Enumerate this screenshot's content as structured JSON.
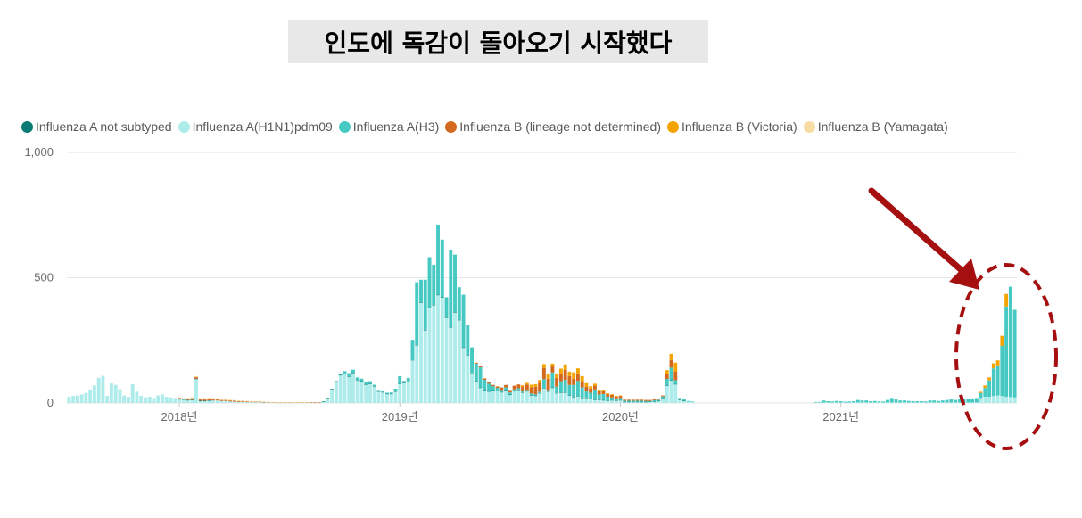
{
  "title": "인도에 독감이 돌아오기 시작했다",
  "colors": {
    "a_not_subtyped": "#0b7b75",
    "h1n1": "#aeeceb",
    "h3": "#45c9c2",
    "b_not_determined": "#d2691e",
    "b_victoria": "#f5a300",
    "b_yamagata": "#f7dca4",
    "annotation": "#a50f0f",
    "gridline": "#e6e6e6"
  },
  "chart_data": {
    "type": "bar",
    "stacked": true,
    "x_unit": "week",
    "start_week": "2017-07",
    "ylim": [
      0,
      1000
    ],
    "y_ticks": [
      "0",
      "500",
      "1,000"
    ],
    "x_ticks": [
      {
        "label": "2018년",
        "week_index": 26
      },
      {
        "label": "2019년",
        "week_index": 78
      },
      {
        "label": "2020년",
        "week_index": 130
      },
      {
        "label": "2021년",
        "week_index": 182
      }
    ],
    "legend_position": "top-left",
    "grid": true,
    "series": [
      {
        "name": "Influenza A not subtyped",
        "color_key": "a_not_subtyped",
        "values": [
          0,
          0,
          0,
          0,
          0,
          0,
          0,
          0,
          0,
          0,
          0,
          0,
          0,
          0,
          0,
          0,
          0,
          0,
          0,
          0,
          0,
          0,
          0,
          0,
          0,
          0,
          1,
          1,
          2,
          2,
          2,
          1,
          1,
          1,
          0,
          0,
          0,
          0,
          0,
          0,
          0,
          0,
          0,
          0,
          0,
          0,
          0,
          0,
          0,
          0,
          0,
          0,
          0,
          0,
          0,
          0,
          0,
          0,
          0,
          0,
          2,
          2,
          2,
          2,
          2,
          2,
          2,
          2,
          2,
          2,
          2,
          2,
          2,
          2,
          2,
          2,
          2,
          2,
          2,
          2,
          2,
          2,
          2,
          2,
          2,
          2,
          2,
          2,
          2,
          2,
          2,
          2,
          2,
          2,
          2,
          2,
          2,
          2,
          2,
          2,
          2,
          2,
          2,
          2,
          2,
          2,
          2,
          2,
          2,
          2,
          2,
          2,
          2,
          2,
          2,
          2,
          2,
          2,
          2,
          2,
          2,
          2,
          2,
          2,
          2,
          2,
          2,
          2,
          2,
          2,
          2,
          1,
          1,
          1,
          1,
          1,
          1,
          1,
          1,
          1,
          1,
          1,
          1,
          1,
          1,
          1,
          0,
          0,
          0,
          0,
          0,
          0,
          0,
          0,
          0,
          0,
          0,
          0,
          0,
          0,
          0,
          0,
          0,
          0,
          0,
          0,
          0,
          0,
          0,
          0,
          0,
          0,
          0,
          0,
          0,
          0,
          0,
          0,
          0,
          0,
          0,
          0,
          0,
          0,
          0,
          0,
          0,
          0,
          0,
          0,
          0,
          0,
          0,
          0,
          0,
          0,
          0,
          0,
          0,
          0,
          0,
          0,
          0,
          0,
          0,
          0,
          0,
          0,
          0,
          0,
          0,
          0,
          0,
          0,
          0,
          0,
          0,
          0,
          0,
          0,
          0,
          0,
          0,
          0
        ]
      },
      {
        "name": "Influenza A(H1N1)pdm09",
        "color_key": "h1n1",
        "values": [
          24,
          28,
          30,
          34,
          40,
          54,
          70,
          100,
          108,
          28,
          78,
          72,
          55,
          30,
          25,
          75,
          45,
          28,
          22,
          25,
          20,
          30,
          35,
          25,
          22,
          20,
          15,
          14,
          10,
          11,
          95,
          8,
          8,
          10,
          10,
          10,
          8,
          8,
          6,
          5,
          4,
          4,
          3,
          3,
          3,
          3,
          2,
          2,
          2,
          1,
          1,
          1,
          1,
          1,
          1,
          1,
          1,
          2,
          2,
          2,
          5,
          18,
          55,
          85,
          110,
          115,
          105,
          118,
          90,
          85,
          72,
          75,
          65,
          45,
          42,
          35,
          35,
          45,
          75,
          80,
          88,
          170,
          230,
          400,
          290,
          380,
          390,
          430,
          420,
          340,
          300,
          360,
          330,
          220,
          190,
          120,
          85,
          60,
          50,
          45,
          50,
          48,
          42,
          50,
          32,
          46,
          52,
          40,
          46,
          30,
          28,
          38,
          58,
          45,
          60,
          38,
          40,
          40,
          30,
          22,
          26,
          20,
          20,
          15,
          12,
          12,
          10,
          8,
          10,
          8,
          10,
          4,
          4,
          4,
          4,
          4,
          4,
          5,
          6,
          8,
          20,
          70,
          90,
          75,
          12,
          8,
          5,
          4,
          0,
          0,
          0,
          0,
          0,
          0,
          0,
          0,
          0,
          0,
          0,
          0,
          0,
          0,
          0,
          0,
          0,
          0,
          0,
          0,
          0,
          0,
          0,
          0,
          0,
          0,
          0,
          0,
          2,
          2,
          2,
          2,
          2,
          2,
          2,
          2,
          2,
          2,
          2,
          2,
          2,
          2,
          2,
          2,
          2,
          2,
          2,
          2,
          2,
          2,
          2,
          2,
          2,
          2,
          2,
          2,
          2,
          2,
          2,
          2,
          2,
          2,
          2,
          2,
          2,
          2,
          2,
          20,
          25,
          25,
          28,
          30,
          28,
          25,
          24,
          22,
          20
        ]
      },
      {
        "name": "Influenza A(H3)",
        "color_key": "h3",
        "values": [
          0,
          0,
          0,
          0,
          0,
          0,
          0,
          0,
          0,
          0,
          0,
          0,
          0,
          0,
          0,
          0,
          0,
          0,
          0,
          0,
          0,
          0,
          0,
          0,
          0,
          0,
          0,
          0,
          0,
          0,
          0,
          0,
          0,
          0,
          0,
          0,
          0,
          0,
          0,
          0,
          0,
          0,
          0,
          0,
          0,
          0,
          0,
          0,
          0,
          0,
          0,
          0,
          0,
          0,
          0,
          0,
          0,
          0,
          0,
          0,
          0,
          0,
          0,
          0,
          4,
          10,
          12,
          13,
          10,
          10,
          10,
          10,
          6,
          5,
          5,
          4,
          5,
          10,
          30,
          6,
          10,
          80,
          250,
          90,
          200,
          200,
          160,
          280,
          230,
          80,
          310,
          230,
          130,
          210,
          120,
          100,
          70,
          80,
          40,
          30,
          15,
          10,
          8,
          10,
          8,
          6,
          5,
          4,
          4,
          6,
          5,
          5,
          35,
          5,
          60,
          25,
          45,
          50,
          40,
          48,
          60,
          40,
          24,
          24,
          40,
          20,
          24,
          15,
          10,
          8,
          8,
          4,
          4,
          4,
          4,
          4,
          3,
          2,
          4,
          4,
          5,
          25,
          50,
          15,
          7,
          8,
          3,
          2,
          0,
          0,
          0,
          0,
          0,
          0,
          0,
          0,
          0,
          0,
          0,
          0,
          0,
          0,
          0,
          0,
          0,
          0,
          0,
          0,
          0,
          0,
          0,
          0,
          0,
          0,
          0,
          0,
          2,
          2,
          8,
          5,
          4,
          6,
          5,
          3,
          4,
          5,
          10,
          8,
          8,
          5,
          6,
          4,
          4,
          10,
          18,
          12,
          8,
          8,
          6,
          5,
          5,
          5,
          4,
          8,
          8,
          6,
          8,
          10,
          12,
          10,
          12,
          12,
          14,
          16,
          18,
          20,
          35,
          65,
          110,
          120,
          200,
          360,
          440,
          350,
          340,
          300
        ]
      },
      {
        "name": "Influenza B (lineage not determined)",
        "color_key": "b_not_determined",
        "values": [
          0,
          0,
          0,
          0,
          0,
          0,
          0,
          0,
          0,
          0,
          0,
          0,
          0,
          0,
          0,
          0,
          0,
          0,
          0,
          0,
          0,
          0,
          0,
          0,
          0,
          0,
          4,
          3,
          5,
          6,
          6,
          5,
          5,
          4,
          4,
          4,
          4,
          4,
          4,
          4,
          3,
          3,
          3,
          2,
          2,
          2,
          2,
          2,
          1,
          1,
          1,
          1,
          1,
          1,
          1,
          1,
          1,
          1,
          1,
          1,
          0,
          0,
          0,
          0,
          0,
          0,
          0,
          0,
          0,
          0,
          0,
          0,
          0,
          0,
          0,
          0,
          0,
          0,
          0,
          0,
          0,
          0,
          0,
          0,
          0,
          0,
          0,
          0,
          0,
          0,
          0,
          0,
          0,
          0,
          0,
          0,
          4,
          6,
          6,
          5,
          5,
          6,
          10,
          10,
          10,
          15,
          15,
          20,
          22,
          25,
          30,
          35,
          45,
          45,
          25,
          35,
          30,
          40,
          35,
          25,
          30,
          25,
          18,
          16,
          15,
          14,
          12,
          10,
          10,
          8,
          8,
          4,
          4,
          4,
          4,
          4,
          4,
          4,
          4,
          4,
          4,
          20,
          30,
          35,
          0,
          0,
          0,
          0,
          0,
          0,
          0,
          0,
          0,
          0,
          0,
          0,
          0,
          0,
          0,
          0,
          0,
          0,
          0,
          0,
          0,
          0,
          0,
          0,
          0,
          0,
          0,
          0,
          0,
          0,
          0,
          0,
          0,
          0,
          0,
          0,
          0,
          0,
          0,
          0,
          0,
          0,
          0,
          0,
          0,
          0,
          0,
          0,
          0,
          0,
          0,
          0,
          0,
          0,
          0,
          0,
          0,
          0,
          0,
          0,
          0,
          0,
          0,
          0,
          0,
          0,
          0,
          0,
          0,
          0,
          0,
          0,
          0,
          0,
          0,
          0,
          0,
          0,
          0,
          0,
          0,
          0,
          0,
          0,
          0,
          0
        ]
      },
      {
        "name": "Influenza B (Victoria)",
        "color_key": "b_victoria",
        "values": [
          0,
          0,
          0,
          0,
          0,
          0,
          0,
          0,
          0,
          0,
          0,
          0,
          0,
          0,
          0,
          0,
          0,
          0,
          0,
          0,
          0,
          0,
          0,
          0,
          0,
          0,
          0,
          0,
          0,
          0,
          0,
          0,
          0,
          0,
          0,
          0,
          0,
          0,
          0,
          0,
          0,
          0,
          0,
          0,
          0,
          0,
          0,
          0,
          0,
          0,
          0,
          0,
          0,
          0,
          0,
          0,
          0,
          0,
          0,
          0,
          0,
          0,
          0,
          0,
          0,
          0,
          0,
          0,
          0,
          0,
          0,
          0,
          0,
          0,
          0,
          0,
          0,
          0,
          0,
          0,
          0,
          0,
          0,
          0,
          0,
          0,
          0,
          0,
          0,
          0,
          0,
          0,
          0,
          0,
          0,
          0,
          0,
          0,
          0,
          0,
          0,
          0,
          0,
          0,
          0,
          0,
          0,
          5,
          6,
          10,
          10,
          12,
          15,
          20,
          10,
          15,
          20,
          22,
          18,
          25,
          20,
          20,
          15,
          10,
          8,
          5,
          5,
          4,
          3,
          2,
          2,
          0,
          0,
          0,
          0,
          0,
          0,
          0,
          0,
          0,
          0,
          15,
          25,
          35,
          0,
          0,
          0,
          0,
          0,
          0,
          0,
          0,
          0,
          0,
          0,
          0,
          0,
          0,
          0,
          0,
          0,
          0,
          0,
          0,
          0,
          0,
          0,
          0,
          0,
          0,
          0,
          0,
          0,
          0,
          0,
          0,
          0,
          0,
          0,
          0,
          0,
          0,
          0,
          0,
          0,
          0,
          0,
          0,
          0,
          0,
          0,
          0,
          0,
          0,
          0,
          0,
          0,
          0,
          0,
          0,
          0,
          0,
          0,
          0,
          0,
          0,
          0,
          0,
          0,
          0,
          0,
          0,
          0,
          0,
          0,
          5,
          10,
          12,
          20,
          20,
          40,
          50
        ]
      },
      {
        "name": "Influenza B (Yamagata)",
        "color_key": "b_yamagata",
        "values": [
          0,
          0,
          0,
          0,
          0,
          0,
          0,
          0,
          0,
          0,
          0,
          0,
          0,
          0,
          0,
          0,
          0,
          0,
          0,
          0,
          0,
          0,
          0,
          0,
          0,
          0,
          2,
          2,
          3,
          4,
          4,
          5,
          5,
          6,
          5,
          4,
          4,
          3,
          3,
          3,
          3,
          3,
          2,
          2,
          2,
          2,
          2,
          1,
          1,
          1,
          1,
          1,
          1,
          1,
          1,
          1,
          1,
          0,
          0,
          0,
          0,
          0,
          0,
          0,
          0,
          0,
          0,
          0,
          0,
          0,
          0,
          0,
          0,
          0,
          0,
          0,
          0,
          0,
          0,
          0,
          0,
          0,
          0,
          0,
          0,
          0,
          0,
          0,
          0,
          0,
          0,
          0,
          0,
          0,
          0,
          0,
          0,
          0,
          0,
          0,
          0,
          0,
          0,
          0,
          0,
          0,
          0,
          0,
          0,
          0,
          0,
          0,
          0,
          0,
          0,
          0,
          0,
          0,
          0,
          0,
          0,
          0,
          0,
          0,
          0,
          0,
          0,
          0,
          0,
          0,
          0,
          0,
          0,
          0,
          0,
          0,
          0,
          0,
          0,
          0,
          0,
          0,
          0,
          0,
          0,
          0,
          0,
          0,
          0,
          0,
          0,
          0,
          0,
          0,
          0,
          0,
          0,
          0,
          0,
          0,
          0,
          0,
          0,
          0,
          0,
          0,
          0,
          0,
          0,
          0,
          0,
          0,
          0,
          0,
          0,
          0,
          0,
          0,
          0,
          0,
          0,
          0,
          0,
          0,
          0,
          0,
          0,
          0,
          0,
          0,
          0,
          0,
          0,
          0,
          0,
          0,
          0,
          0,
          0,
          0,
          0,
          0,
          0,
          0,
          0,
          0,
          0,
          0,
          0,
          0,
          0,
          0,
          0,
          0,
          0,
          0,
          0,
          0,
          0,
          0,
          0,
          0,
          0,
          0,
          0,
          0,
          0,
          0,
          0,
          0
        ]
      }
    ]
  }
}
